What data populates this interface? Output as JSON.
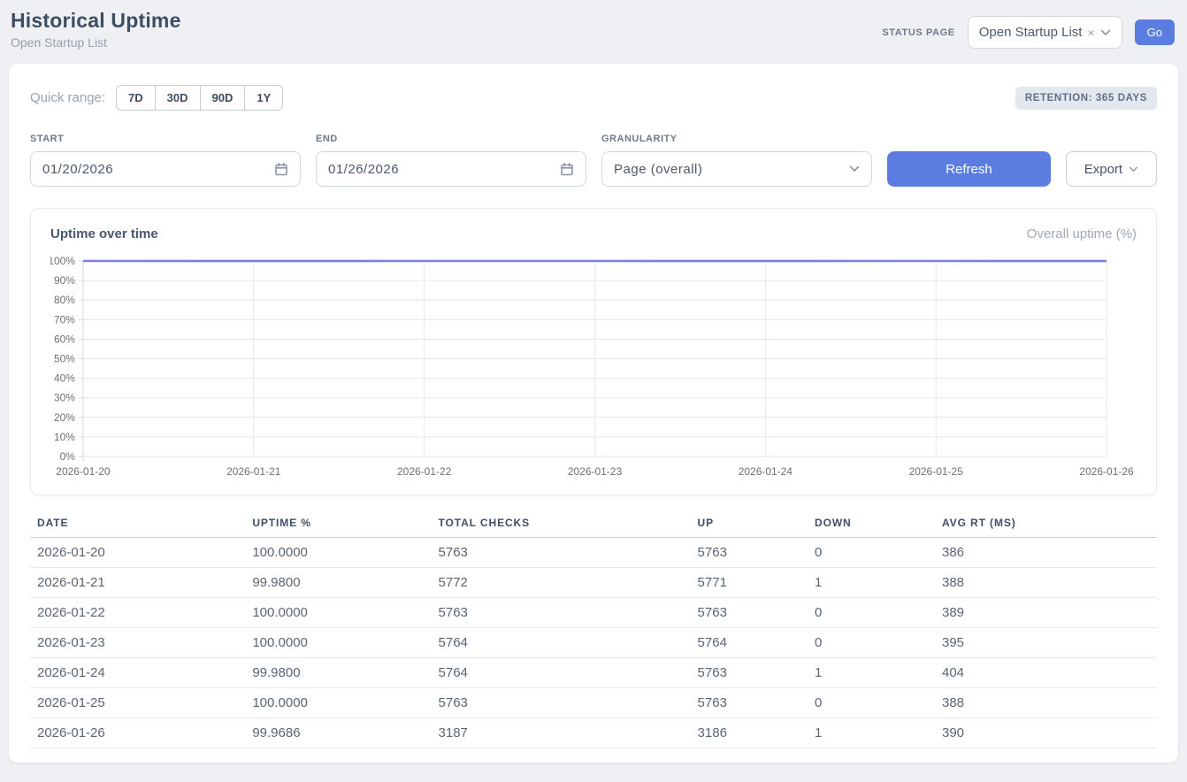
{
  "header": {
    "title": "Historical Uptime",
    "subtitle": "Open Startup List",
    "status_page_label": "STATUS PAGE",
    "status_page_value": "Open Startup List",
    "status_page_clear": "×",
    "go_label": "Go"
  },
  "filters": {
    "quick_range_label": "Quick range:",
    "quick_ranges": [
      "7D",
      "30D",
      "90D",
      "1Y"
    ],
    "retention_badge": "RETENTION: 365 DAYS",
    "start_label": "START",
    "start_value": "01/20/2026",
    "end_label": "END",
    "end_value": "01/26/2026",
    "granularity_label": "GRANULARITY",
    "granularity_value": "Page (overall)",
    "refresh_label": "Refresh",
    "export_label": "Export"
  },
  "chart": {
    "title": "Uptime over time",
    "legend": "Overall uptime (%)"
  },
  "chart_data": {
    "type": "line",
    "title": "Uptime over time",
    "x": [
      "2026-01-20",
      "2026-01-21",
      "2026-01-22",
      "2026-01-23",
      "2026-01-24",
      "2026-01-25",
      "2026-01-26"
    ],
    "series": [
      {
        "name": "Overall uptime (%)",
        "values": [
          100.0,
          99.98,
          100.0,
          100.0,
          99.98,
          100.0,
          99.9686
        ]
      }
    ],
    "ylim": [
      0,
      100
    ],
    "y_tick_step": 10,
    "y_tick_suffix": "%",
    "grid": true,
    "legend_position": "top-right",
    "line_color": "#7a7fe3",
    "grid_color": "#e5e6e9",
    "axis_color": "#d8dade",
    "tick_label_color": "#6d6f73"
  },
  "table": {
    "columns": [
      "DATE",
      "UPTIME %",
      "TOTAL CHECKS",
      "UP",
      "DOWN",
      "AVG RT (MS)"
    ],
    "col_widths": [
      "19.1%",
      "16.5%",
      "23.0%",
      "10.4%",
      "11.3%",
      "19.7%"
    ],
    "rows": [
      [
        "2026-01-20",
        "100.0000",
        "5763",
        "5763",
        "0",
        "386"
      ],
      [
        "2026-01-21",
        "99.9800",
        "5772",
        "5771",
        "1",
        "388"
      ],
      [
        "2026-01-22",
        "100.0000",
        "5763",
        "5763",
        "0",
        "389"
      ],
      [
        "2026-01-23",
        "100.0000",
        "5764",
        "5764",
        "0",
        "395"
      ],
      [
        "2026-01-24",
        "99.9800",
        "5764",
        "5763",
        "1",
        "404"
      ],
      [
        "2026-01-25",
        "100.0000",
        "5763",
        "5763",
        "0",
        "388"
      ],
      [
        "2026-01-26",
        "99.9686",
        "3187",
        "3186",
        "1",
        "390"
      ]
    ]
  }
}
